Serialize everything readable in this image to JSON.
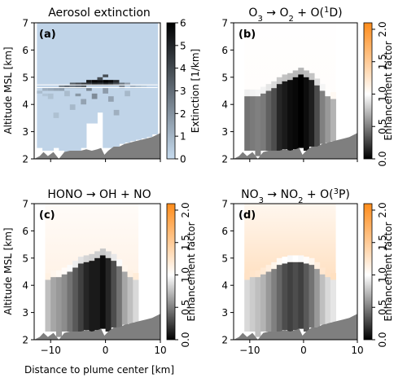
{
  "colors": {
    "panel_a_title": "#000000",
    "panel_b_title": "#1f77b4",
    "panel_c_title": "#2ca02c",
    "panel_d_title": "#d62728",
    "terrain": "#7f7f7f",
    "panel_letter": "#d0d0d0",
    "extinction_low": "#c6dbef",
    "extinction_high": "#000000",
    "enhancement_low": "#000000",
    "enhancement_mid": "#ffffff",
    "enhancement_high": "#ff8c1a"
  },
  "shared": {
    "x_axis_label": "Distance to plume center [km]",
    "y_axis_label": "Altitude MSL [km]",
    "x_ticks": [
      -10,
      0,
      10
    ],
    "y_ticks": [
      2,
      3,
      4,
      5,
      6,
      7
    ],
    "xlim": [
      -13,
      10
    ],
    "ylim": [
      2,
      7
    ],
    "terrain_profile": {
      "x": [
        -13,
        -12,
        -11.3,
        -10.5,
        -9.5,
        -8.5,
        -7.5,
        -6.5,
        -5.5,
        -4.5,
        -3.5,
        -2.5,
        -1.5,
        -0.8,
        -0.2,
        0.5,
        1.5,
        2.5,
        3.5,
        4.5,
        5.5,
        6.5,
        7.5,
        8.5,
        10
      ],
      "y": [
        2.0,
        2.1,
        2.25,
        2.1,
        2.25,
        2.0,
        2.25,
        2.3,
        2.3,
        2.3,
        2.35,
        2.3,
        2.35,
        2.4,
        2.15,
        2.3,
        2.45,
        2.45,
        2.55,
        2.6,
        2.65,
        2.7,
        2.75,
        2.8,
        2.95
      ]
    }
  },
  "chart_data": [
    {
      "panel": "a",
      "letter": "(a)",
      "type": "heatmap",
      "title": "Aerosol extinction",
      "colorbar_label": "Extinction [1/km]",
      "colorbar_ticks": [
        0,
        1,
        2,
        3,
        4,
        5,
        6
      ],
      "clim": [
        0,
        6
      ],
      "dx_km": 1,
      "dz_km": 0.1,
      "columns": [
        {
          "x": -12,
          "bottom": 2.4,
          "top": 7.0,
          "mods": [
            {
              "z0": 4.4,
              "z1": 4.5,
              "v": 0.6
            }
          ]
        },
        {
          "x": -11,
          "bottom": 2.3,
          "top": 7.0,
          "mods": [
            {
              "z0": 4.5,
              "z1": 4.6,
              "v": 0.9
            },
            {
              "z0": 4.3,
              "z1": 4.4,
              "v": 0.4
            }
          ]
        },
        {
          "x": -10,
          "bottom": 2.3,
          "top": 7.0,
          "mods": [
            {
              "z0": 4.5,
              "z1": 4.6,
              "v": 1.0
            },
            {
              "z0": 4.2,
              "z1": 4.4,
              "v": 0.5
            }
          ]
        },
        {
          "x": -9,
          "bottom": 2.4,
          "top": 7.0,
          "mods": [
            {
              "z0": 4.5,
              "z1": 4.6,
              "v": 1.2
            },
            {
              "z0": 3.5,
              "z1": 3.7,
              "v": 0.5
            }
          ]
        },
        {
          "x": -8,
          "bottom": 2.3,
          "top": 7.0,
          "mods": [
            {
              "z0": 4.6,
              "z1": 4.7,
              "v": 2.0
            },
            {
              "z0": 4.5,
              "z1": 4.6,
              "v": 1.3
            }
          ]
        },
        {
          "x": -7,
          "bottom": 2.2,
          "top": 7.0,
          "mods": [
            {
              "z0": 4.6,
              "z1": 4.7,
              "v": 2.6
            },
            {
              "z0": 4.3,
              "z1": 4.5,
              "v": 0.6
            }
          ]
        },
        {
          "x": -6,
          "bottom": 2.3,
          "top": 7.0,
          "mods": [
            {
              "z0": 4.7,
              "z1": 4.8,
              "v": 3.2
            },
            {
              "z0": 4.6,
              "z1": 4.7,
              "v": 2.2
            },
            {
              "z0": 3.8,
              "z1": 4.0,
              "v": 0.7
            }
          ]
        },
        {
          "x": -5,
          "bottom": 2.3,
          "top": 7.0,
          "mods": [
            {
              "z0": 4.7,
              "z1": 4.8,
              "v": 3.8
            },
            {
              "z0": 4.6,
              "z1": 4.7,
              "v": 2.6
            },
            {
              "z0": 4.3,
              "z1": 4.4,
              "v": 1.5
            }
          ]
        },
        {
          "x": -4,
          "bottom": 2.4,
          "top": 7.0,
          "mods": [
            {
              "z0": 4.7,
              "z1": 4.8,
              "v": 4.4
            },
            {
              "z0": 4.6,
              "z1": 4.7,
              "v": 3.0
            },
            {
              "z0": 4.0,
              "z1": 4.2,
              "v": 1.2
            }
          ]
        },
        {
          "x": -3,
          "bottom": 3.3,
          "top": 7.0,
          "mods": [
            {
              "z0": 4.8,
              "z1": 4.9,
              "v": 5.2
            },
            {
              "z0": 4.7,
              "z1": 4.8,
              "v": 4.2
            },
            {
              "z0": 4.5,
              "z1": 4.6,
              "v": 2.0
            }
          ]
        },
        {
          "x": -2,
          "bottom": 3.3,
          "top": 7.0,
          "mods": [
            {
              "z0": 4.8,
              "z1": 4.9,
              "v": 5.8
            },
            {
              "z0": 4.7,
              "z1": 4.8,
              "v": 4.8
            },
            {
              "z0": 4.2,
              "z1": 4.4,
              "v": 1.8
            }
          ]
        },
        {
          "x": -1,
          "bottom": 3.7,
          "top": 7.0,
          "mods": [
            {
              "z0": 4.9,
              "z1": 5.0,
              "v": 3.6
            },
            {
              "z0": 4.8,
              "z1": 4.9,
              "v": 5.6
            },
            {
              "z0": 4.7,
              "z1": 4.8,
              "v": 4.6
            }
          ]
        },
        {
          "x": 0,
          "bottom": 2.4,
          "top": 7.0,
          "mods": [
            {
              "z0": 5.0,
              "z1": 5.1,
              "v": 3.6
            },
            {
              "z0": 4.8,
              "z1": 4.9,
              "v": 6.0
            },
            {
              "z0": 4.7,
              "z1": 4.8,
              "v": 4.9
            },
            {
              "z0": 4.4,
              "z1": 4.6,
              "v": 1.4
            }
          ]
        },
        {
          "x": 1,
          "bottom": 2.4,
          "top": 7.0,
          "mods": [
            {
              "z0": 4.8,
              "z1": 4.9,
              "v": 5.6
            },
            {
              "z0": 4.7,
              "z1": 4.8,
              "v": 4.4
            },
            {
              "z0": 4.1,
              "z1": 4.3,
              "v": 1.2
            }
          ]
        },
        {
          "x": 2,
          "bottom": 2.45,
          "top": 7.0,
          "mods": [
            {
              "z0": 4.8,
              "z1": 4.9,
              "v": 4.6
            },
            {
              "z0": 4.7,
              "z1": 4.8,
              "v": 3.6
            },
            {
              "z0": 3.6,
              "z1": 3.8,
              "v": 0.9
            }
          ]
        },
        {
          "x": 3,
          "bottom": 2.55,
          "top": 7.0,
          "mods": [
            {
              "z0": 4.7,
              "z1": 4.8,
              "v": 2.4
            },
            {
              "z0": 4.6,
              "z1": 4.7,
              "v": 1.8
            }
          ]
        },
        {
          "x": 4,
          "bottom": 2.6,
          "top": 7.0,
          "mods": [
            {
              "z0": 4.7,
              "z1": 4.8,
              "v": 1.4
            },
            {
              "z0": 4.3,
              "z1": 4.5,
              "v": 0.7
            }
          ]
        },
        {
          "x": 5,
          "bottom": 2.65,
          "top": 7.0,
          "mods": [
            {
              "z0": 4.6,
              "z1": 4.7,
              "v": 0.8
            }
          ]
        },
        {
          "x": 6,
          "bottom": 2.7,
          "top": 7.0,
          "mods": [
            {
              "z0": 4.6,
              "z1": 4.7,
              "v": 0.5
            }
          ]
        },
        {
          "x": 7,
          "bottom": 2.75,
          "top": 7.0,
          "mods": [
            {
              "z0": 4.6,
              "z1": 4.7,
              "v": 0.3
            }
          ]
        },
        {
          "x": 8,
          "bottom": 2.8,
          "top": 7.0,
          "mods": []
        },
        {
          "x": 9,
          "bottom": 2.9,
          "top": 7.0,
          "mods": []
        }
      ],
      "base_value": 0.1
    },
    {
      "panel": "b",
      "letter": "(b)",
      "type": "heatmap",
      "title_parts": [
        "O",
        "3",
        " → O",
        "2",
        " + O(",
        "1",
        "D)"
      ],
      "colorbar_label": "Enhancement factor",
      "colorbar_ticks": [
        0.0,
        0.5,
        1.0,
        1.5,
        2.0
      ],
      "clim": [
        0,
        2.1
      ],
      "columns": [
        {
          "x": -10.5,
          "w": 1.0,
          "bottom": 2.3,
          "top": 4.3,
          "val": 0.45
        },
        {
          "x": -9.5,
          "w": 1.0,
          "bottom": 2.3,
          "top": 4.3,
          "val": 0.48
        },
        {
          "x": -8.5,
          "w": 1.0,
          "bottom": 2.1,
          "top": 4.3,
          "val": 0.5
        },
        {
          "x": -7.5,
          "w": 1.0,
          "bottom": 2.3,
          "top": 4.4,
          "val": 0.48
        },
        {
          "x": -6.5,
          "w": 1.0,
          "bottom": 2.3,
          "top": 4.5,
          "val": 0.38
        },
        {
          "x": -5.5,
          "w": 1.0,
          "bottom": 2.3,
          "top": 4.6,
          "val": 0.3
        },
        {
          "x": -4.5,
          "w": 1.0,
          "bottom": 2.3,
          "top": 4.75,
          "val": 0.15
        },
        {
          "x": -3.5,
          "w": 1.0,
          "bottom": 2.35,
          "top": 4.85,
          "val": 0.1
        },
        {
          "x": -2.5,
          "w": 1.0,
          "bottom": 2.3,
          "top": 4.9,
          "val": 0.05
        },
        {
          "x": -1.5,
          "w": 1.0,
          "bottom": 2.35,
          "top": 5.0,
          "val": 0.03
        },
        {
          "x": -0.5,
          "w": 1.0,
          "bottom": 2.4,
          "top": 5.1,
          "val": 0.0
        },
        {
          "x": 0.5,
          "w": 1.0,
          "bottom": 2.3,
          "top": 5.0,
          "val": 0.05
        },
        {
          "x": 1.5,
          "w": 1.0,
          "bottom": 2.45,
          "top": 4.9,
          "val": 0.12
        },
        {
          "x": 2.5,
          "w": 1.0,
          "bottom": 2.45,
          "top": 4.7,
          "val": 0.3
        },
        {
          "x": 3.5,
          "w": 1.0,
          "bottom": 2.55,
          "top": 4.5,
          "val": 0.5
        },
        {
          "x": 4.5,
          "w": 1.0,
          "bottom": 2.6,
          "top": 4.3,
          "val": 0.6
        },
        {
          "x": 5.5,
          "w": 1.0,
          "bottom": 2.65,
          "top": 4.2,
          "val": 0.7
        }
      ],
      "above_plume_value": 1.02,
      "above_plume_top": 7.0
    },
    {
      "panel": "c",
      "letter": "(c)",
      "type": "heatmap",
      "title": "HONO → OH + NO",
      "colorbar_label": "Enhancement factor",
      "colorbar_ticks": [
        0.0,
        0.5,
        1.0,
        1.5,
        2.0
      ],
      "clim": [
        0,
        2.1
      ],
      "columns": [
        {
          "x": -10.5,
          "w": 1.0,
          "bottom": 2.3,
          "top": 4.2,
          "val": 0.75
        },
        {
          "x": -9.5,
          "w": 1.0,
          "bottom": 2.3,
          "top": 4.3,
          "val": 0.65
        },
        {
          "x": -8.5,
          "w": 1.0,
          "bottom": 2.1,
          "top": 4.3,
          "val": 0.6
        },
        {
          "x": -7.5,
          "w": 1.0,
          "bottom": 2.3,
          "top": 4.4,
          "val": 0.55
        },
        {
          "x": -6.5,
          "w": 1.0,
          "bottom": 2.3,
          "top": 4.5,
          "val": 0.45
        },
        {
          "x": -5.5,
          "w": 1.0,
          "bottom": 2.3,
          "top": 4.65,
          "val": 0.35
        },
        {
          "x": -4.5,
          "w": 1.0,
          "bottom": 2.3,
          "top": 4.8,
          "val": 0.25
        },
        {
          "x": -3.5,
          "w": 1.0,
          "bottom": 2.35,
          "top": 4.85,
          "val": 0.15
        },
        {
          "x": -2.5,
          "w": 1.0,
          "bottom": 2.3,
          "top": 4.9,
          "val": 0.1
        },
        {
          "x": -1.5,
          "w": 1.0,
          "bottom": 2.35,
          "top": 5.0,
          "val": 0.1
        },
        {
          "x": -0.5,
          "w": 1.0,
          "bottom": 2.4,
          "top": 5.1,
          "val": 0.05
        },
        {
          "x": 0.5,
          "w": 1.0,
          "bottom": 2.3,
          "top": 5.0,
          "val": 0.15
        },
        {
          "x": 1.5,
          "w": 1.0,
          "bottom": 2.45,
          "top": 4.9,
          "val": 0.3
        },
        {
          "x": 2.5,
          "w": 1.0,
          "bottom": 2.45,
          "top": 4.7,
          "val": 0.45
        },
        {
          "x": 3.5,
          "w": 1.0,
          "bottom": 2.55,
          "top": 4.5,
          "val": 0.65
        },
        {
          "x": 4.5,
          "w": 1.0,
          "bottom": 2.6,
          "top": 4.3,
          "val": 0.75
        },
        {
          "x": 5.5,
          "w": 1.0,
          "bottom": 2.65,
          "top": 4.2,
          "val": 0.85
        }
      ],
      "above_plume_value": 1.12,
      "above_plume_top": 7.0
    },
    {
      "panel": "d",
      "letter": "(d)",
      "type": "heatmap",
      "title_parts": [
        "NO",
        "3",
        " → NO",
        "2",
        " + O(",
        "3",
        "P)"
      ],
      "colorbar_label": "Enhancement factor",
      "colorbar_ticks": [
        0.0,
        0.5,
        1.0,
        1.5,
        2.0
      ],
      "clim": [
        0,
        2.1
      ],
      "columns": [
        {
          "x": -10.5,
          "w": 1.0,
          "bottom": 2.3,
          "top": 4.2,
          "val": 0.85
        },
        {
          "x": -9.5,
          "w": 1.0,
          "bottom": 2.3,
          "top": 4.3,
          "val": 0.8
        },
        {
          "x": -8.5,
          "w": 1.0,
          "bottom": 2.1,
          "top": 4.3,
          "val": 0.75
        },
        {
          "x": -7.5,
          "w": 1.0,
          "bottom": 2.3,
          "top": 4.4,
          "val": 0.7
        },
        {
          "x": -6.5,
          "w": 1.0,
          "bottom": 2.3,
          "top": 4.5,
          "val": 0.6
        },
        {
          "x": -5.5,
          "w": 1.0,
          "bottom": 2.3,
          "top": 4.6,
          "val": 0.5
        },
        {
          "x": -4.5,
          "w": 1.0,
          "bottom": 2.3,
          "top": 4.75,
          "val": 0.4
        },
        {
          "x": -3.5,
          "w": 1.0,
          "bottom": 2.35,
          "top": 4.8,
          "val": 0.3
        },
        {
          "x": -2.5,
          "w": 1.0,
          "bottom": 2.3,
          "top": 4.85,
          "val": 0.25
        },
        {
          "x": -1.5,
          "w": 1.0,
          "bottom": 2.35,
          "top": 4.85,
          "val": 0.3
        },
        {
          "x": -0.5,
          "w": 1.0,
          "bottom": 2.4,
          "top": 4.85,
          "val": 0.25
        },
        {
          "x": 0.5,
          "w": 1.0,
          "bottom": 2.3,
          "top": 4.8,
          "val": 0.35
        },
        {
          "x": 1.5,
          "w": 1.0,
          "bottom": 2.45,
          "top": 4.75,
          "val": 0.45
        },
        {
          "x": 2.5,
          "w": 1.0,
          "bottom": 2.45,
          "top": 4.6,
          "val": 0.6
        },
        {
          "x": 3.5,
          "w": 1.0,
          "bottom": 2.55,
          "top": 4.4,
          "val": 0.75
        },
        {
          "x": 4.5,
          "w": 1.0,
          "bottom": 2.6,
          "top": 4.3,
          "val": 0.85
        },
        {
          "x": 5.5,
          "w": 1.0,
          "bottom": 2.65,
          "top": 4.2,
          "val": 0.9
        }
      ],
      "above_plume_value": 1.3,
      "above_plume_top": 7.0
    }
  ]
}
